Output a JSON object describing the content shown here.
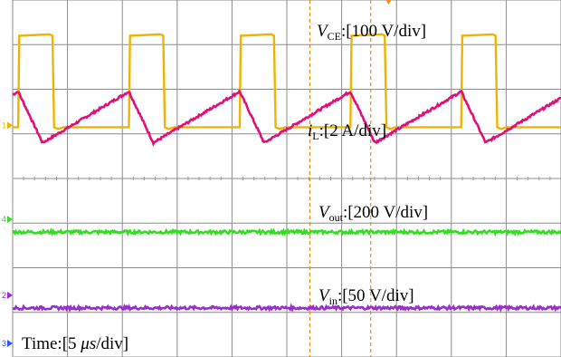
{
  "chart_data": {
    "type": "line",
    "grid": true,
    "divisions": {
      "x": 10,
      "y": 8
    },
    "time_label": {
      "prefix": "Time:[5 ",
      "unit": "μs",
      "suffix": "/div]"
    },
    "channels": [
      {
        "id": "1",
        "marker": "1",
        "var": "V",
        "sub": "CE",
        "scale": ":[100 V/div]",
        "color": "#f0b400",
        "shape": "square",
        "baseline_div": 5.15,
        "amplitude_div": 2.05,
        "period_div": 2.02,
        "duty": 0.31,
        "first_rise_div": 0.1
      },
      {
        "id": "iL",
        "marker": "",
        "var": "i",
        "sub": "L",
        "scale": ":[2 A/div]",
        "color": "#e0107a",
        "shape": "triangle",
        "low_div": 4.8,
        "high_div": 5.95,
        "period_div": 2.02,
        "first_peak_div": 0.1
      },
      {
        "id": "4",
        "marker": "4",
        "var": "V",
        "sub": "out",
        "scale": ":[200 V/div]",
        "color": "#33dd22",
        "shape": "dc",
        "level_div": 2.8
      },
      {
        "id": "2",
        "marker": "2",
        "var": "V",
        "sub": "in",
        "scale": ":[50 V/div]",
        "color": "#9b2ccf",
        "shape": "dc",
        "level_div": 1.1
      }
    ],
    "ref_marker": "3",
    "cursor_color": "#f08a1a"
  }
}
